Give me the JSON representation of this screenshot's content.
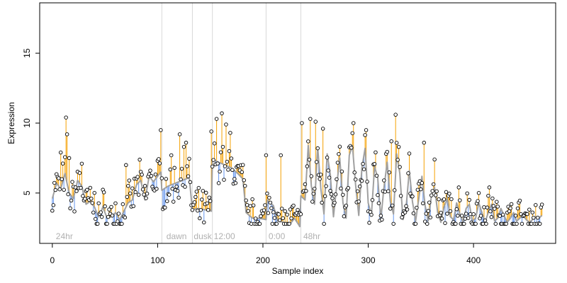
{
  "chart_data": {
    "type": "scatter",
    "title": "",
    "xlabel": "Sample index",
    "ylabel": "Expression",
    "xlim": [
      -12,
      478
    ],
    "ylim": [
      1.4,
      18.6
    ],
    "x_ticks": [
      0,
      100,
      200,
      300,
      400
    ],
    "y_ticks": [
      5,
      10,
      15
    ],
    "grid": false,
    "legend": "none",
    "colors": {
      "point_edge": "#000000",
      "point_fill": "#ffffff",
      "smooth_line": "#a0a0a0",
      "residual_above": "#f5a000",
      "residual_below": "#6495ed",
      "divider": "#d8d8d8",
      "phase_label": "#b0b0b0"
    },
    "dividers_x": [
      104,
      133,
      152,
      203,
      236
    ],
    "phases": [
      {
        "x": 2,
        "label": "24hr"
      },
      {
        "x": 107,
        "label": "dawn"
      },
      {
        "x": 133,
        "label": "dusk"
      },
      {
        "x": 152,
        "label": "12:00"
      },
      {
        "x": 204,
        "label": "0:00"
      },
      {
        "x": 237,
        "label": "48hr"
      }
    ],
    "series": [
      {
        "knots": [
          [
            0,
            4.6
          ],
          [
            4,
            5.7
          ],
          [
            8,
            5.3
          ],
          [
            12,
            6.4
          ],
          [
            16,
            5.0
          ],
          [
            20,
            4.6
          ],
          [
            24,
            5.9
          ],
          [
            28,
            5.5
          ],
          [
            32,
            4.2
          ],
          [
            36,
            4.4
          ],
          [
            40,
            4.0
          ],
          [
            44,
            3.3
          ],
          [
            48,
            4.0
          ],
          [
            52,
            3.2
          ],
          [
            56,
            3.3
          ],
          [
            60,
            3.6
          ],
          [
            64,
            3.1
          ],
          [
            68,
            3.7
          ],
          [
            72,
            4.3
          ],
          [
            76,
            4.5
          ],
          [
            80,
            5.6
          ],
          [
            84,
            5.9
          ],
          [
            88,
            4.5
          ],
          [
            92,
            6.2
          ],
          [
            96,
            5.8
          ],
          [
            100,
            6.2
          ],
          [
            103,
            6.5
          ],
          [
            104,
            5.2
          ],
          [
            110,
            5.5
          ],
          [
            120,
            5.8
          ],
          [
            130,
            6.1
          ],
          [
            133,
            3.8
          ],
          [
            138,
            3.9
          ],
          [
            145,
            3.8
          ],
          [
            151,
            3.7
          ],
          [
            152,
            7.4
          ],
          [
            158,
            7.2
          ],
          [
            164,
            7.0
          ],
          [
            170,
            6.8
          ],
          [
            176,
            6.4
          ],
          [
            181,
            6.0
          ],
          [
            184,
            3.6
          ],
          [
            190,
            3.2
          ],
          [
            196,
            3.2
          ],
          [
            203,
            3.1
          ],
          [
            204,
            4.5
          ],
          [
            210,
            4.1
          ],
          [
            214,
            3.0
          ],
          [
            220,
            2.9
          ],
          [
            226,
            2.8
          ],
          [
            230,
            3.2
          ],
          [
            235,
            2.6
          ],
          [
            236,
            4.8
          ],
          [
            240,
            4.5
          ],
          [
            243,
            8.4
          ],
          [
            246,
            5.5
          ],
          [
            249,
            4.2
          ],
          [
            252,
            8.3
          ],
          [
            255,
            5.3
          ],
          [
            258,
            3.5
          ],
          [
            261,
            7.8
          ],
          [
            264,
            6.3
          ],
          [
            267,
            3.3
          ],
          [
            270,
            5.5
          ],
          [
            273,
            7.5
          ],
          [
            276,
            4.3
          ],
          [
            279,
            3.2
          ],
          [
            282,
            7.7
          ],
          [
            285,
            8.4
          ],
          [
            288,
            5.6
          ],
          [
            291,
            3.4
          ],
          [
            294,
            6.8
          ],
          [
            297,
            8.2
          ],
          [
            300,
            4.3
          ],
          [
            303,
            3.4
          ],
          [
            306,
            6.9
          ],
          [
            309,
            6.1
          ],
          [
            312,
            3.2
          ],
          [
            315,
            5.4
          ],
          [
            318,
            7.2
          ],
          [
            321,
            4.4
          ],
          [
            324,
            3.5
          ],
          [
            327,
            7.8
          ],
          [
            330,
            6.4
          ],
          [
            333,
            3.1
          ],
          [
            336,
            4.0
          ],
          [
            339,
            6.6
          ],
          [
            342,
            4.4
          ],
          [
            345,
            3.0
          ],
          [
            348,
            4.6
          ],
          [
            351,
            6.2
          ],
          [
            354,
            4.1
          ],
          [
            357,
            3.0
          ],
          [
            360,
            4.8
          ],
          [
            363,
            5.4
          ],
          [
            366,
            3.6
          ],
          [
            369,
            2.9
          ],
          [
            372,
            4.0
          ],
          [
            375,
            4.6
          ],
          [
            378,
            3.3
          ],
          [
            381,
            3.1
          ],
          [
            384,
            4.3
          ],
          [
            387,
            3.5
          ],
          [
            390,
            2.9
          ],
          [
            393,
            3.9
          ],
          [
            396,
            4.2
          ],
          [
            399,
            3.0
          ],
          [
            402,
            3.2
          ],
          [
            405,
            4.3
          ],
          [
            408,
            3.6
          ],
          [
            411,
            2.9
          ],
          [
            414,
            3.6
          ],
          [
            417,
            4.2
          ],
          [
            420,
            3.0
          ],
          [
            423,
            3.2
          ],
          [
            426,
            3.9
          ],
          [
            429,
            3.4
          ],
          [
            432,
            2.9
          ],
          [
            435,
            3.2
          ],
          [
            438,
            3.6
          ],
          [
            441,
            3.0
          ],
          [
            444,
            3.2
          ],
          [
            447,
            3.4
          ],
          [
            450,
            3.1
          ],
          [
            453,
            2.9
          ],
          [
            456,
            3.1
          ],
          [
            459,
            3.3
          ],
          [
            462,
            3.2
          ],
          [
            465,
            3.4
          ]
        ],
        "outliers": [
          [
            13,
            10.4
          ],
          [
            14,
            9.2
          ],
          [
            8,
            7.9
          ],
          [
            16,
            7.5
          ],
          [
            28,
            7.1
          ],
          [
            70,
            7.0
          ],
          [
            103,
            9.5
          ],
          [
            113,
            7.7
          ],
          [
            121,
            9.2
          ],
          [
            125,
            8.3
          ],
          [
            127,
            8.6
          ],
          [
            151,
            9.4
          ],
          [
            156,
            10.3
          ],
          [
            161,
            10.7
          ],
          [
            165,
            9.9
          ],
          [
            169,
            9.3
          ],
          [
            203,
            7.7
          ],
          [
            217,
            7.7
          ],
          [
            237,
            10.0
          ],
          [
            245,
            10.3
          ],
          [
            250,
            10.1
          ],
          [
            257,
            9.6
          ],
          [
            286,
            10.0
          ],
          [
            298,
            9.5
          ],
          [
            326,
            10.6
          ],
          [
            322,
            8.7
          ],
          [
            353,
            8.6
          ],
          [
            363,
            7.4
          ],
          [
            386,
            5.4
          ],
          [
            415,
            5.4
          ]
        ]
      }
    ]
  }
}
